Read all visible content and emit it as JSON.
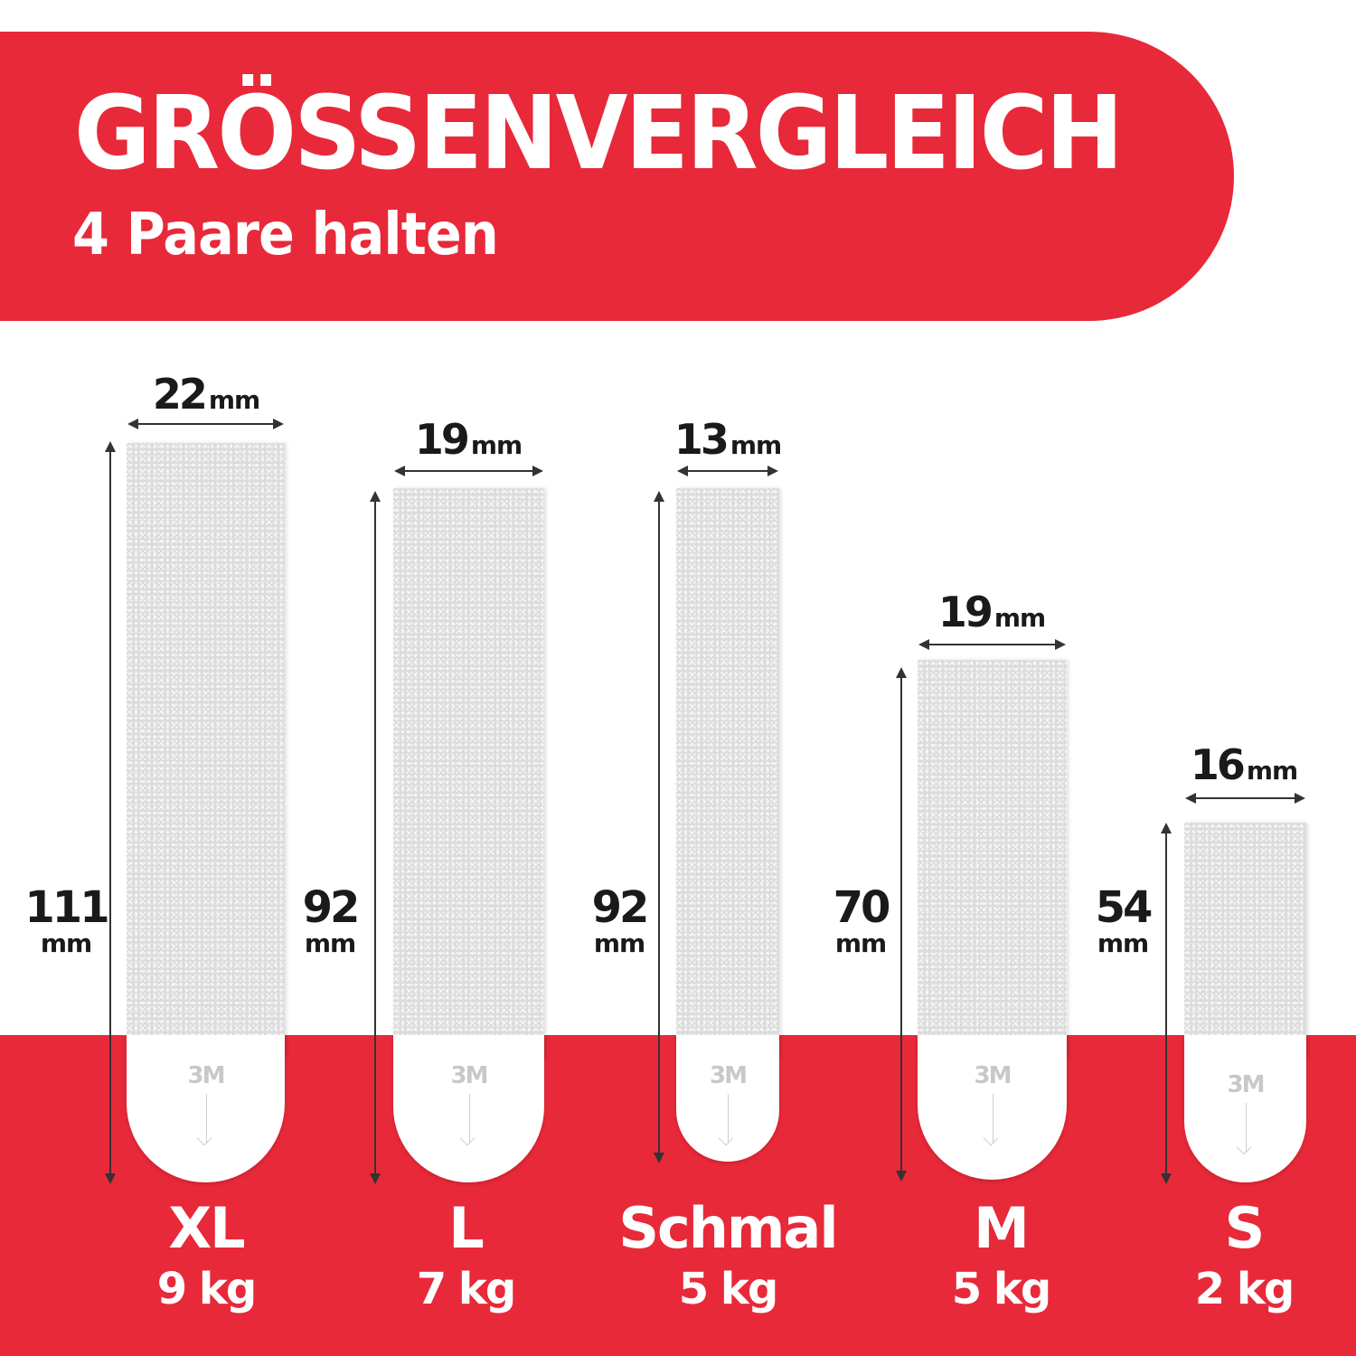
{
  "header": {
    "title": "GRÖSSENVERGLEICH",
    "subtitle": "4 Paare halten"
  },
  "colors": {
    "brand_red": "#e82939",
    "text_dark": "#1a1a1a",
    "strip_grey": "#dcdcdc"
  },
  "unit": "mm",
  "logo": "3M",
  "items": [
    {
      "name": "XL",
      "weight": "9 kg",
      "width": "22",
      "height": "111"
    },
    {
      "name": "L",
      "weight": "7 kg",
      "width": "19",
      "height": "92"
    },
    {
      "name": "Schmal",
      "weight": "5 kg",
      "width": "13",
      "height": "92"
    },
    {
      "name": "M",
      "weight": "5 kg",
      "width": "19",
      "height": "70"
    },
    {
      "name": "S",
      "weight": "2 kg",
      "width": "16",
      "height": "54"
    }
  ]
}
